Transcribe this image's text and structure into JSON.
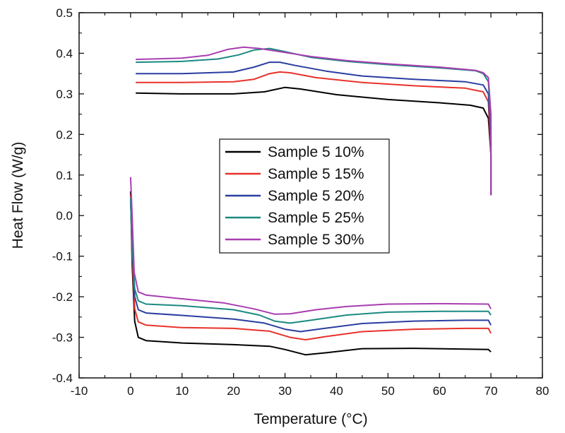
{
  "chart_data": {
    "type": "line",
    "xlabel": "Temperature (°C)",
    "ylabel": "Heat Flow (W/g)",
    "xlim": [
      -10,
      80
    ],
    "ylim": [
      -0.4,
      0.5
    ],
    "xticks": [
      "-10",
      "0",
      "10",
      "20",
      "30",
      "40",
      "50",
      "60",
      "70",
      "80"
    ],
    "yticks": [
      "-0.4",
      "-0.3",
      "-0.2",
      "-0.1",
      "0.0",
      "0.1",
      "0.2",
      "0.3",
      "0.4",
      "0.5"
    ],
    "grid": false,
    "legend_position": "center",
    "series": [
      {
        "name": "Sample 5 10%",
        "color": "#000000",
        "upper": [
          [
            1,
            0.302
          ],
          [
            10,
            0.3
          ],
          [
            20,
            0.3
          ],
          [
            26,
            0.305
          ],
          [
            30,
            0.316
          ],
          [
            33,
            0.312
          ],
          [
            40,
            0.298
          ],
          [
            50,
            0.286
          ],
          [
            60,
            0.278
          ],
          [
            66,
            0.272
          ],
          [
            68.5,
            0.265
          ],
          [
            69.5,
            0.24
          ],
          [
            70,
            0.15
          ],
          [
            70,
            0.05
          ]
        ],
        "lower": [
          [
            0,
            0.06
          ],
          [
            0.3,
            -0.12
          ],
          [
            0.8,
            -0.26
          ],
          [
            1.5,
            -0.3
          ],
          [
            3,
            -0.308
          ],
          [
            10,
            -0.314
          ],
          [
            20,
            -0.318
          ],
          [
            27,
            -0.322
          ],
          [
            30,
            -0.33
          ],
          [
            34,
            -0.343
          ],
          [
            38,
            -0.338
          ],
          [
            45,
            -0.328
          ],
          [
            55,
            -0.327
          ],
          [
            65,
            -0.329
          ],
          [
            69.5,
            -0.33
          ],
          [
            70,
            -0.336
          ]
        ]
      },
      {
        "name": "Sample 5 15%",
        "color": "#e8322a",
        "upper": [
          [
            1,
            0.328
          ],
          [
            10,
            0.328
          ],
          [
            20,
            0.33
          ],
          [
            24,
            0.336
          ],
          [
            27,
            0.35
          ],
          [
            29,
            0.354
          ],
          [
            31,
            0.352
          ],
          [
            36,
            0.34
          ],
          [
            45,
            0.328
          ],
          [
            55,
            0.32
          ],
          [
            65,
            0.314
          ],
          [
            68.5,
            0.305
          ],
          [
            69.5,
            0.28
          ],
          [
            70,
            0.15
          ],
          [
            70,
            0.05
          ]
        ],
        "lower": [
          [
            0,
            0.05
          ],
          [
            0.3,
            -0.1
          ],
          [
            0.8,
            -0.23
          ],
          [
            1.5,
            -0.262
          ],
          [
            3,
            -0.27
          ],
          [
            10,
            -0.276
          ],
          [
            20,
            -0.278
          ],
          [
            27,
            -0.285
          ],
          [
            31,
            -0.3
          ],
          [
            34,
            -0.306
          ],
          [
            38,
            -0.298
          ],
          [
            45,
            -0.286
          ],
          [
            55,
            -0.28
          ],
          [
            65,
            -0.278
          ],
          [
            69.5,
            -0.278
          ],
          [
            70,
            -0.29
          ]
        ]
      },
      {
        "name": "Sample 5 20%",
        "color": "#2a3ea0",
        "upper": [
          [
            1,
            0.35
          ],
          [
            10,
            0.35
          ],
          [
            20,
            0.354
          ],
          [
            24,
            0.366
          ],
          [
            27,
            0.378
          ],
          [
            29,
            0.378
          ],
          [
            32,
            0.37
          ],
          [
            38,
            0.356
          ],
          [
            45,
            0.344
          ],
          [
            55,
            0.336
          ],
          [
            65,
            0.33
          ],
          [
            68.5,
            0.322
          ],
          [
            69.5,
            0.3
          ],
          [
            70,
            0.18
          ],
          [
            70,
            0.05
          ]
        ],
        "lower": [
          [
            0,
            0.04
          ],
          [
            0.3,
            -0.08
          ],
          [
            0.8,
            -0.2
          ],
          [
            1.5,
            -0.232
          ],
          [
            3,
            -0.24
          ],
          [
            10,
            -0.246
          ],
          [
            20,
            -0.255
          ],
          [
            26,
            -0.265
          ],
          [
            30,
            -0.28
          ],
          [
            33,
            -0.286
          ],
          [
            37,
            -0.279
          ],
          [
            45,
            -0.266
          ],
          [
            55,
            -0.26
          ],
          [
            65,
            -0.258
          ],
          [
            69.5,
            -0.258
          ],
          [
            70,
            -0.27
          ]
        ]
      },
      {
        "name": "Sample 5 25%",
        "color": "#1a8a80",
        "upper": [
          [
            1,
            0.378
          ],
          [
            10,
            0.38
          ],
          [
            17,
            0.386
          ],
          [
            21,
            0.396
          ],
          [
            24,
            0.408
          ],
          [
            27,
            0.412
          ],
          [
            30,
            0.404
          ],
          [
            35,
            0.39
          ],
          [
            42,
            0.38
          ],
          [
            50,
            0.372
          ],
          [
            60,
            0.364
          ],
          [
            67,
            0.357
          ],
          [
            68.5,
            0.35
          ],
          [
            69.5,
            0.33
          ],
          [
            70,
            0.22
          ],
          [
            70,
            0.05
          ]
        ],
        "lower": [
          [
            0,
            0.045
          ],
          [
            0.3,
            -0.07
          ],
          [
            0.8,
            -0.18
          ],
          [
            1.5,
            -0.21
          ],
          [
            3,
            -0.218
          ],
          [
            10,
            -0.222
          ],
          [
            20,
            -0.232
          ],
          [
            25,
            -0.245
          ],
          [
            28,
            -0.26
          ],
          [
            31,
            -0.265
          ],
          [
            35,
            -0.258
          ],
          [
            42,
            -0.245
          ],
          [
            50,
            -0.238
          ],
          [
            60,
            -0.236
          ],
          [
            69.5,
            -0.236
          ],
          [
            70,
            -0.245
          ]
        ]
      },
      {
        "name": "Sample 5 30%",
        "color": "#a83eb0",
        "upper": [
          [
            1,
            0.385
          ],
          [
            10,
            0.388
          ],
          [
            15,
            0.395
          ],
          [
            19,
            0.41
          ],
          [
            22,
            0.415
          ],
          [
            25,
            0.412
          ],
          [
            30,
            0.402
          ],
          [
            35,
            0.392
          ],
          [
            42,
            0.382
          ],
          [
            50,
            0.374
          ],
          [
            60,
            0.366
          ],
          [
            67,
            0.358
          ],
          [
            68.5,
            0.352
          ],
          [
            69.5,
            0.34
          ],
          [
            70,
            0.25
          ],
          [
            70,
            0.05
          ]
        ],
        "lower": [
          [
            0,
            0.095
          ],
          [
            0.3,
            0.0
          ],
          [
            0.7,
            -0.14
          ],
          [
            1.5,
            -0.188
          ],
          [
            3,
            -0.196
          ],
          [
            10,
            -0.205
          ],
          [
            18,
            -0.215
          ],
          [
            24,
            -0.23
          ],
          [
            28,
            -0.243
          ],
          [
            31,
            -0.242
          ],
          [
            36,
            -0.232
          ],
          [
            42,
            -0.224
          ],
          [
            50,
            -0.218
          ],
          [
            60,
            -0.217
          ],
          [
            69.5,
            -0.218
          ],
          [
            70,
            -0.23
          ]
        ]
      }
    ]
  }
}
